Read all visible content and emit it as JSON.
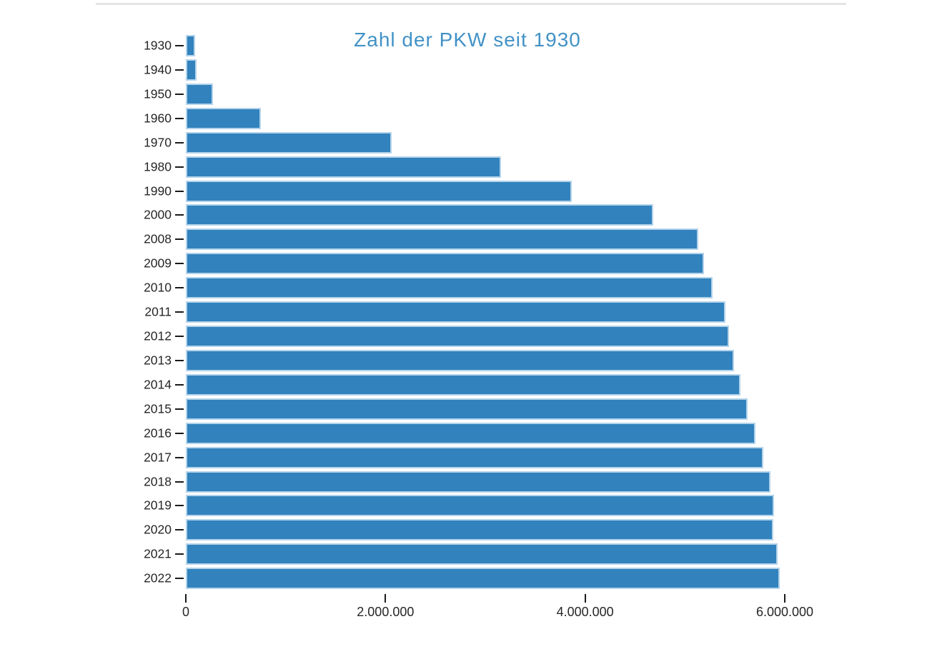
{
  "page": {
    "background": "#ffffff",
    "divider_color": "#e4e4e4"
  },
  "chart_data": {
    "type": "bar",
    "orientation": "horizontal",
    "title": "Zahl der PKW seit 1930",
    "title_color": "#4292c6",
    "bar_color": "#3182bd",
    "bar_edge_color": "#b4d3ea",
    "xlabel": "",
    "ylabel": "",
    "grid": false,
    "legend": false,
    "xlim": [
      0,
      6000000
    ],
    "categories": [
      "1930",
      "1940",
      "1950",
      "1960",
      "1970",
      "1980",
      "1990",
      "2000",
      "2008",
      "2009",
      "2010",
      "2011",
      "2012",
      "2013",
      "2014",
      "2015",
      "2016",
      "2017",
      "2018",
      "2019",
      "2020",
      "2021",
      "2022"
    ],
    "values": [
      95000,
      105000,
      275000,
      750000,
      2060000,
      3160000,
      3865000,
      4680000,
      5135000,
      5190000,
      5275000,
      5405000,
      5440000,
      5495000,
      5555000,
      5625000,
      5710000,
      5785000,
      5855000,
      5890000,
      5885000,
      5930000,
      5950000
    ],
    "x_ticks": [
      {
        "value": 0,
        "label": "0"
      },
      {
        "value": 2000000,
        "label": "2.000.000"
      },
      {
        "value": 4000000,
        "label": "4.000.000"
      },
      {
        "value": 6000000,
        "label": "6.000.000"
      }
    ]
  }
}
